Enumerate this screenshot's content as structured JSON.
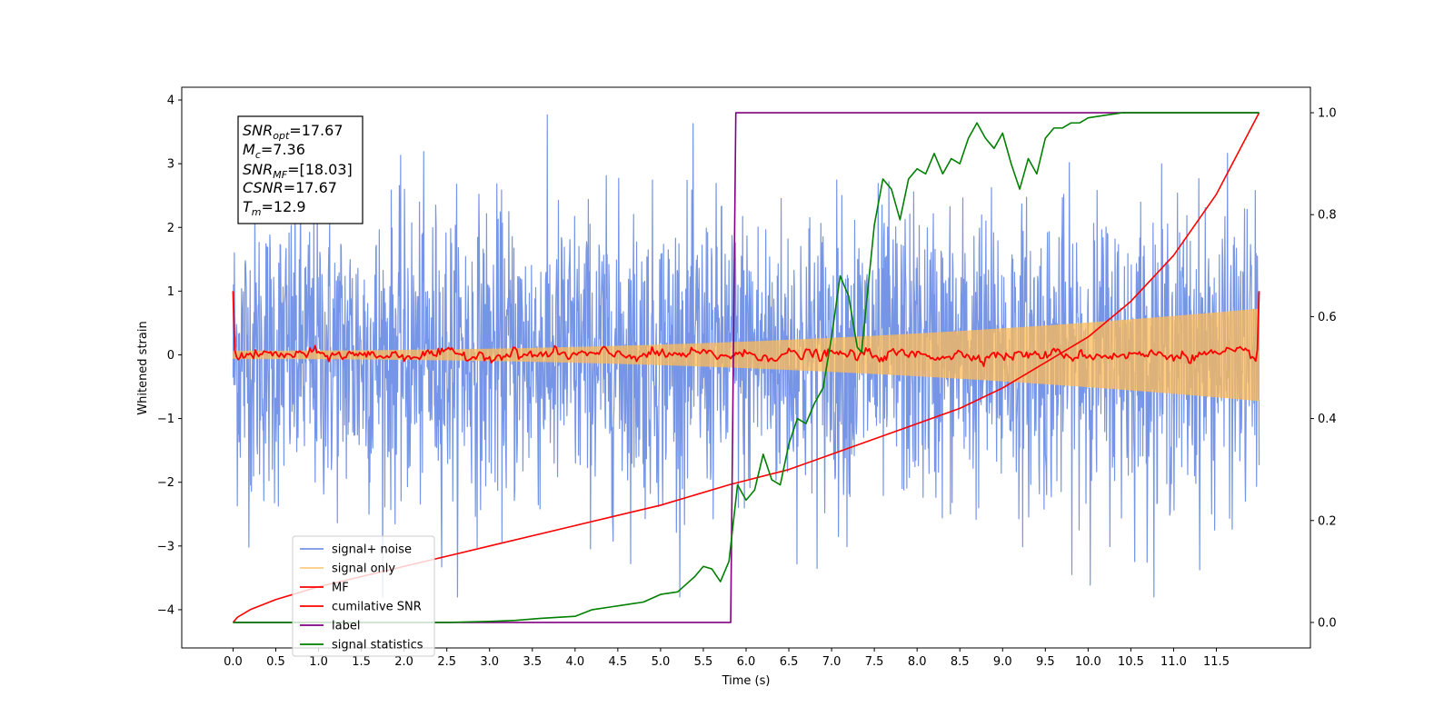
{
  "chart_data": {
    "type": "line",
    "xlabel": "Time (s)",
    "ylabel": "Whitened strain",
    "ylabel_right": "",
    "xlim": [
      -0.6,
      12.6
    ],
    "ylim": [
      -4.6,
      4.2
    ],
    "ylim_right": [
      -0.05,
      1.05
    ],
    "x_ticks": [
      "0.0",
      "0.5",
      "1.0",
      "1.5",
      "2.0",
      "2.5",
      "3.0",
      "3.5",
      "4.0",
      "4.5",
      "5.0",
      "5.5",
      "6.0",
      "6.5",
      "7.0",
      "7.5",
      "8.0",
      "8.5",
      "9.0",
      "9.5",
      "10.0",
      "10.5",
      "11.0",
      "11.5"
    ],
    "y_ticks": [
      "−4",
      "−3",
      "−2",
      "−1",
      "0",
      "1",
      "2",
      "3",
      "4"
    ],
    "y_ticks_right": [
      "0.0",
      "0.2",
      "0.4",
      "0.6",
      "0.8",
      "1.0"
    ],
    "grid": false,
    "legend_position": "lower-left",
    "annotation": {
      "snr_opt": {
        "base": "SNR",
        "sub": "opt",
        "value": "=17.67"
      },
      "mc": {
        "base": "M",
        "sub": "c",
        "value": "=7.36"
      },
      "snr_mf": {
        "base": "SNR",
        "sub": "MF",
        "value": "=[18.03]"
      },
      "csnr": {
        "base": "CSNR",
        "sub": "",
        "value": "=17.67"
      },
      "tm": {
        "base": "T",
        "sub": "m",
        "value": "=12.9"
      }
    },
    "series": [
      {
        "name": "signal+ noise",
        "color": "#6f8fe6",
        "axis": "left",
        "kind": "noise",
        "x_range": [
          0,
          12
        ],
        "std": 1.15,
        "max_abs": 3.8
      },
      {
        "name": "signal only",
        "color": "#ffbb55",
        "axis": "left",
        "kind": "chirp",
        "x_range": [
          0,
          12
        ],
        "amplitude_start": 0.06,
        "amplitude_end": 0.72
      },
      {
        "name": "MF",
        "color": "#ff0000",
        "axis": "left",
        "kind": "mf",
        "x_range": [
          0,
          12
        ],
        "edge_value": 1.0,
        "std": 0.04
      },
      {
        "name": "cumilative SNR",
        "color": "#ff0000",
        "axis": "right",
        "x": [
          0,
          0.05,
          0.2,
          0.5,
          1,
          2,
          3,
          4,
          5,
          5.8,
          6.5,
          7,
          7.5,
          8,
          8.5,
          9,
          9.5,
          10,
          10.5,
          11,
          11.5,
          12
        ],
        "y": [
          0.0,
          0.01,
          0.025,
          0.045,
          0.07,
          0.11,
          0.15,
          0.19,
          0.23,
          0.27,
          0.3,
          0.33,
          0.36,
          0.39,
          0.42,
          0.46,
          0.51,
          0.56,
          0.63,
          0.72,
          0.84,
          1.0
        ]
      },
      {
        "name": "label",
        "color": "#800080",
        "axis": "right",
        "x": [
          0,
          5.82,
          5.88,
          12
        ],
        "y": [
          0,
          0,
          1,
          1
        ]
      },
      {
        "name": "signal statistics",
        "color": "#008000",
        "axis": "right",
        "x": [
          0,
          0.5,
          1,
          1.5,
          2,
          2.5,
          3,
          3.3,
          3.6,
          3.8,
          4.0,
          4.2,
          4.4,
          4.6,
          4.8,
          5.0,
          5.2,
          5.4,
          5.5,
          5.6,
          5.7,
          5.8,
          5.9,
          6.0,
          6.1,
          6.2,
          6.3,
          6.4,
          6.5,
          6.6,
          6.7,
          6.8,
          6.9,
          7.0,
          7.1,
          7.2,
          7.3,
          7.35,
          7.5,
          7.6,
          7.7,
          7.8,
          7.9,
          8.0,
          8.1,
          8.2,
          8.3,
          8.4,
          8.5,
          8.6,
          8.7,
          8.8,
          8.9,
          9.0,
          9.1,
          9.2,
          9.3,
          9.4,
          9.5,
          9.6,
          9.7,
          9.8,
          9.9,
          10.0,
          10.2,
          10.4,
          10.6,
          10.8,
          11.0,
          11.5,
          12.0
        ],
        "y": [
          0.0,
          0.0,
          0.0,
          0.0,
          0.0,
          0.0,
          0.002,
          0.004,
          0.008,
          0.01,
          0.012,
          0.025,
          0.03,
          0.035,
          0.04,
          0.055,
          0.06,
          0.09,
          0.11,
          0.105,
          0.08,
          0.12,
          0.27,
          0.24,
          0.26,
          0.33,
          0.28,
          0.27,
          0.35,
          0.4,
          0.39,
          0.43,
          0.46,
          0.56,
          0.68,
          0.64,
          0.54,
          0.53,
          0.78,
          0.87,
          0.85,
          0.79,
          0.87,
          0.89,
          0.88,
          0.92,
          0.88,
          0.91,
          0.9,
          0.95,
          0.98,
          0.95,
          0.93,
          0.96,
          0.9,
          0.85,
          0.91,
          0.88,
          0.95,
          0.97,
          0.97,
          0.98,
          0.98,
          0.99,
          0.995,
          1.0,
          1.0,
          1.0,
          1.0,
          1.0,
          1.0
        ]
      }
    ]
  }
}
